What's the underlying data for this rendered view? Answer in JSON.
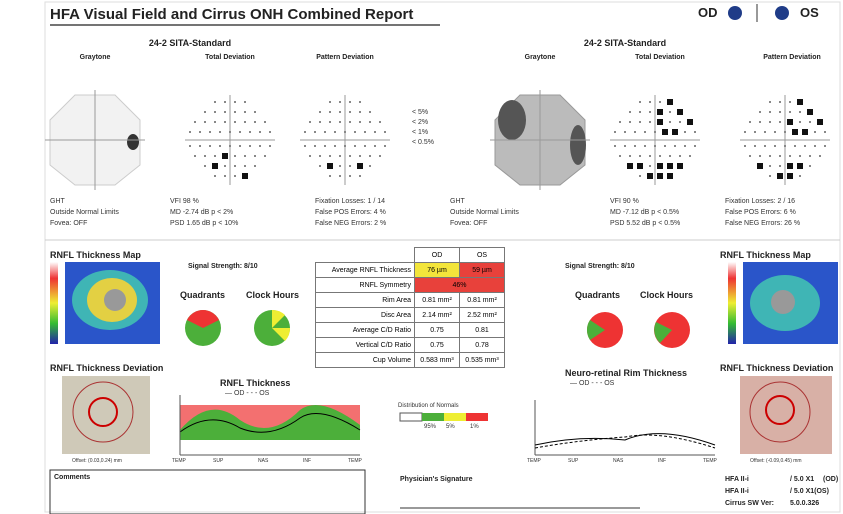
{
  "header": {
    "title": "HFA Visual Field and Cirrus ONH Combined Report",
    "od": "OD",
    "os": "OS"
  },
  "left_vf": {
    "test": "24-2 SITA-Standard",
    "plots": [
      "Graytone",
      "Total Deviation",
      "Pattern Deviation"
    ],
    "legend": [
      "< 5%",
      "< 2%",
      "< 1%",
      "< 0.5%"
    ],
    "stats_left": [
      "GHT",
      "Outside Normal Limits",
      "Fovea: OFF"
    ],
    "stats_mid": [
      "VFI  98 %",
      "MD  -2.74 dB  p < 2%",
      "PSD  1.65 dB  p < 10%"
    ],
    "stats_right": [
      "Fixation Losses:  1 / 14",
      "False POS Errors:  4 %",
      "False NEG Errors:  2 %"
    ]
  },
  "right_vf": {
    "test": "24-2 SITA-Standard",
    "plots": [
      "Graytone",
      "Total Deviation",
      "Pattern Deviation"
    ],
    "stats_left": [
      "GHT",
      "Outside Normal Limits",
      "Fovea: OFF"
    ],
    "stats_mid": [
      "VFI  90 %",
      "MD  -7.12 dB  p < 0.5%",
      "PSD  5.52 dB  p < 0.5%"
    ],
    "stats_right": [
      "Fixation Losses:  2 / 16",
      "False POS Errors:  6 %",
      "False NEG Errors:  26 %"
    ]
  },
  "table": {
    "header": [
      "OD",
      "OS"
    ],
    "rows": [
      [
        "Average RNFL Thickness",
        "76 µm",
        "59 µm"
      ],
      [
        "RNFL Symmetry",
        "46%"
      ],
      [
        "Rim Area",
        "0.81 mm²",
        "0.81 mm²"
      ],
      [
        "Disc Area",
        "2.14 mm²",
        "2.52 mm²"
      ],
      [
        "Average C/D Ratio",
        "0.75",
        "0.81"
      ],
      [
        "Vertical C/D Ratio",
        "0.75",
        "0.78"
      ],
      [
        "Cup Volume",
        "0.583 mm³",
        "0.535 mm³"
      ]
    ]
  },
  "left_oct": {
    "map": "RNFL Thickness Map",
    "signal": "Signal Strength:  8/10",
    "quadrants": "Quadrants",
    "clock": "Clock Hours",
    "deviation": "RNFL Thickness Deviation",
    "offset": "Offset: (0.03,0.24) mm",
    "profile": "RNFL Thickness",
    "profile_legend": "— OD  - - - OS",
    "profile_x": [
      "TEMP",
      "SUP",
      "NAS",
      "INF",
      "TEMP"
    ]
  },
  "right_oct": {
    "map": "RNFL Thickness Map",
    "signal": "Signal Strength:  8/10",
    "quadrants": "Quadrants",
    "clock": "Clock Hours",
    "deviation": "RNFL Thickness Deviation",
    "offset": "Offset: (-0.09,0.45) mm",
    "profile": "Neuro-retinal Rim Thickness",
    "profile_legend": "— OD  - - - OS",
    "profile_x": [
      "TEMP",
      "SUP",
      "NAS",
      "INF",
      "TEMP"
    ]
  },
  "normals": {
    "title": "Distribution of Normals",
    "labels": [
      "95%",
      "5%",
      "1%"
    ]
  },
  "footer": {
    "comments": "Comments",
    "signature": "Physician's Signature",
    "device": [
      [
        "HFA II-i",
        "/ 5.0 X1",
        "(OD)"
      ],
      [
        "HFA II-i",
        "/ 5.0 X1(OS)"
      ]
    ],
    "software": [
      "Cirrus SW Ver:",
      "5.0.0.326"
    ]
  }
}
